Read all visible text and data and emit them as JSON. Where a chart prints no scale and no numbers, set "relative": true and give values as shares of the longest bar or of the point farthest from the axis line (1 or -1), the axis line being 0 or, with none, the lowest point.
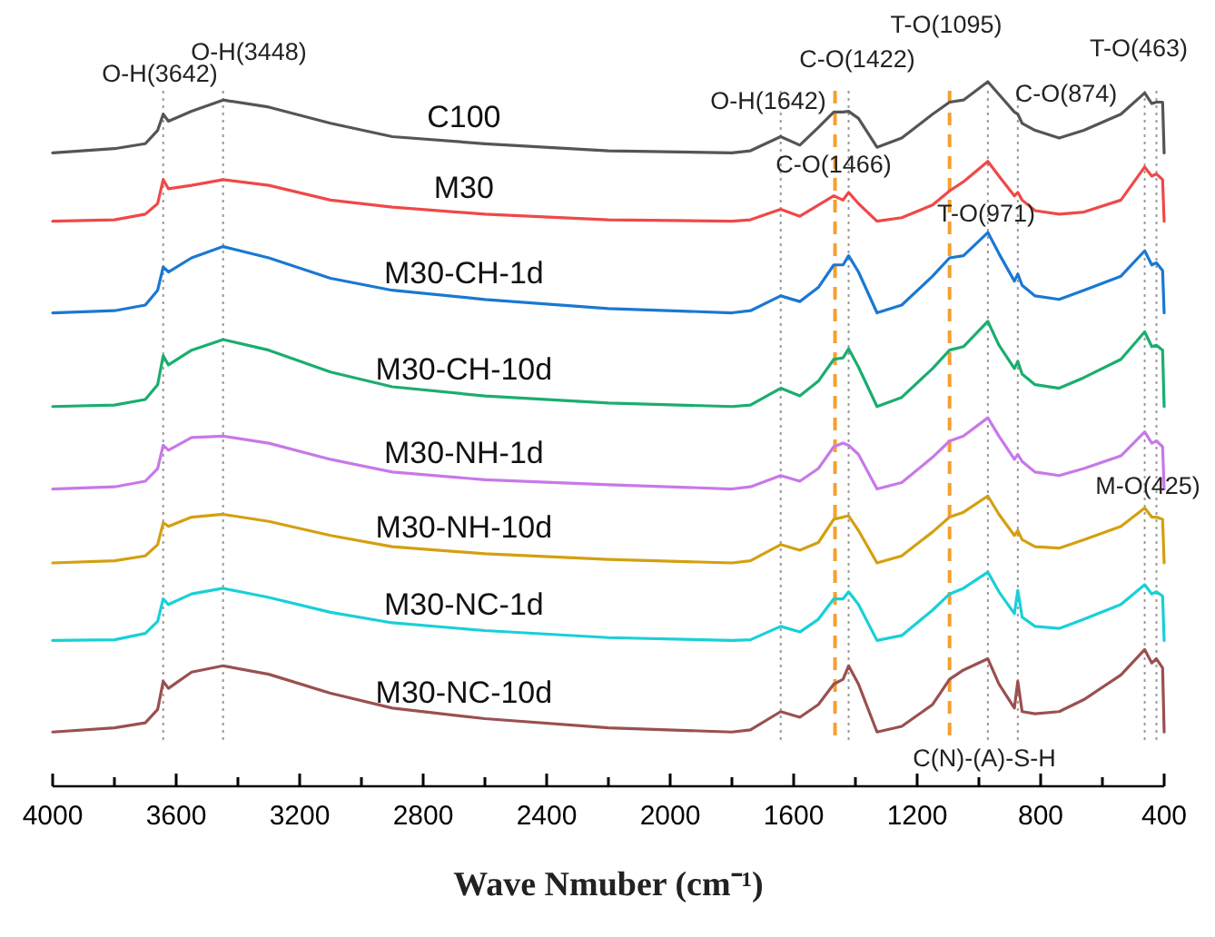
{
  "chart_data": {
    "type": "line",
    "relative": true,
    "xlabel": "Wave Nmuber (cm⁻¹)",
    "xlim": [
      4000,
      400
    ],
    "xticks": [
      4000,
      {
        "value": 3800,
        "label": null
      },
      3600,
      {
        "value": 3400,
        "label": null
      },
      3200,
      {
        "value": 3000,
        "label": null
      },
      2800,
      {
        "value": 2600,
        "label": null
      },
      2400,
      {
        "value": 2200,
        "label": null
      },
      2000,
      {
        "value": 1800,
        "label": null
      },
      1600,
      {
        "value": 1400,
        "label": null
      },
      1200,
      {
        "value": 1000,
        "label": null
      },
      800,
      {
        "value": 600,
        "label": null
      },
      400
    ],
    "tick_labels": "x",
    "grid": false,
    "legend": false,
    "marker": "none",
    "line_style": "solid",
    "x": [
      4000,
      3800,
      3700,
      3660,
      3642,
      3625,
      3550,
      3448,
      3300,
      3100,
      2900,
      2600,
      2200,
      1800,
      1740,
      1642,
      1580,
      1520,
      1470,
      1440,
      1422,
      1390,
      1330,
      1250,
      1150,
      1095,
      1050,
      971,
      935,
      885,
      874,
      860,
      818,
      740,
      660,
      540,
      463,
      440,
      425,
      405,
      400
    ],
    "series": [
      {
        "name": "C100",
        "color": "#555555",
        "values": [
          0.899,
          0.905,
          0.912,
          0.931,
          0.954,
          0.944,
          0.958,
          0.974,
          0.964,
          0.941,
          0.922,
          0.912,
          0.902,
          0.899,
          0.902,
          0.922,
          0.91,
          0.935,
          0.957,
          0.957,
          0.958,
          0.948,
          0.907,
          0.92,
          0.954,
          0.971,
          0.974,
          1,
          0.982,
          0.957,
          0.954,
          0.941,
          0.931,
          0.92,
          0.931,
          0.954,
          0.984,
          0.969,
          0.971,
          0.971,
          0.899
        ]
      },
      {
        "name": "M30",
        "color": "#f04848",
        "values": [
          0.802,
          0.804,
          0.812,
          0.827,
          0.861,
          0.848,
          0.853,
          0.861,
          0.853,
          0.832,
          0.822,
          0.812,
          0.804,
          0.802,
          0.804,
          0.819,
          0.809,
          0.825,
          0.838,
          0.832,
          0.843,
          0.827,
          0.802,
          0.807,
          0.825,
          0.845,
          0.858,
          0.887,
          0.866,
          0.838,
          0.843,
          0.832,
          0.817,
          0.812,
          0.815,
          0.832,
          0.879,
          0.866,
          0.869,
          0.861,
          0.802
        ]
      },
      {
        "name": "M30-CH-1d",
        "color": "#1a78d2",
        "values": [
          0.672,
          0.675,
          0.683,
          0.704,
          0.737,
          0.73,
          0.75,
          0.766,
          0.75,
          0.721,
          0.704,
          0.691,
          0.678,
          0.672,
          0.675,
          0.696,
          0.688,
          0.708,
          0.74,
          0.74,
          0.753,
          0.73,
          0.672,
          0.683,
          0.724,
          0.75,
          0.753,
          0.786,
          0.756,
          0.717,
          0.727,
          0.711,
          0.696,
          0.691,
          0.704,
          0.724,
          0.76,
          0.74,
          0.743,
          0.732,
          0.672
        ]
      },
      {
        "name": "M30-CH-10d",
        "color": "#1aae6e",
        "values": [
          0.539,
          0.541,
          0.549,
          0.57,
          0.611,
          0.598,
          0.619,
          0.634,
          0.619,
          0.588,
          0.567,
          0.554,
          0.544,
          0.539,
          0.541,
          0.565,
          0.554,
          0.575,
          0.606,
          0.608,
          0.621,
          0.595,
          0.539,
          0.552,
          0.593,
          0.619,
          0.624,
          0.66,
          0.626,
          0.593,
          0.603,
          0.585,
          0.57,
          0.565,
          0.58,
          0.606,
          0.645,
          0.624,
          0.626,
          0.619,
          0.539
        ]
      },
      {
        "name": "M30-NH-1d",
        "color": "#c878e8",
        "values": [
          0.422,
          0.425,
          0.433,
          0.451,
          0.484,
          0.477,
          0.495,
          0.497,
          0.487,
          0.464,
          0.446,
          0.435,
          0.428,
          0.422,
          0.425,
          0.441,
          0.433,
          0.451,
          0.482,
          0.487,
          0.484,
          0.471,
          0.422,
          0.431,
          0.467,
          0.49,
          0.497,
          0.523,
          0.497,
          0.464,
          0.471,
          0.461,
          0.446,
          0.441,
          0.451,
          0.469,
          0.503,
          0.487,
          0.49,
          0.482,
          0.422
        ]
      },
      {
        "name": "M30-NH-10d",
        "color": "#d4a010",
        "values": [
          0.317,
          0.32,
          0.327,
          0.343,
          0.374,
          0.369,
          0.382,
          0.386,
          0.376,
          0.356,
          0.34,
          0.33,
          0.322,
          0.317,
          0.32,
          0.343,
          0.335,
          0.346,
          0.379,
          0.382,
          0.384,
          0.363,
          0.317,
          0.327,
          0.361,
          0.382,
          0.389,
          0.412,
          0.386,
          0.356,
          0.363,
          0.35,
          0.34,
          0.338,
          0.35,
          0.369,
          0.395,
          0.382,
          0.382,
          0.379,
          0.317
        ]
      },
      {
        "name": "M30-NC-1d",
        "color": "#18d0d8",
        "values": [
          0.207,
          0.208,
          0.217,
          0.234,
          0.266,
          0.258,
          0.273,
          0.281,
          0.268,
          0.247,
          0.232,
          0.221,
          0.211,
          0.207,
          0.208,
          0.227,
          0.219,
          0.237,
          0.266,
          0.266,
          0.276,
          0.258,
          0.207,
          0.214,
          0.25,
          0.273,
          0.281,
          0.304,
          0.276,
          0.245,
          0.278,
          0.24,
          0.227,
          0.224,
          0.237,
          0.258,
          0.286,
          0.273,
          0.276,
          0.27,
          0.207
        ]
      },
      {
        "name": "M30-NC-10d",
        "color": "#9a5050",
        "values": [
          0.077,
          0.083,
          0.09,
          0.109,
          0.149,
          0.139,
          0.162,
          0.171,
          0.159,
          0.132,
          0.111,
          0.096,
          0.083,
          0.077,
          0.08,
          0.106,
          0.098,
          0.116,
          0.145,
          0.152,
          0.171,
          0.145,
          0.077,
          0.085,
          0.116,
          0.152,
          0.165,
          0.181,
          0.145,
          0.111,
          0.149,
          0.106,
          0.103,
          0.106,
          0.123,
          0.158,
          0.194,
          0.175,
          0.181,
          0.168,
          0.077
        ]
      }
    ],
    "ref_lines": [
      {
        "axis": "x",
        "value": 3642,
        "color": "#999999",
        "line_style": "dotted"
      },
      {
        "axis": "x",
        "value": 3448,
        "color": "#999999",
        "line_style": "dotted"
      },
      {
        "axis": "x",
        "value": 1642,
        "color": "#999999",
        "line_style": "dotted"
      },
      {
        "axis": "x",
        "value": 1422,
        "color": "#999999",
        "line_style": "dotted"
      },
      {
        "axis": "x",
        "value": 971,
        "color": "#999999",
        "line_style": "dotted"
      },
      {
        "axis": "x",
        "value": 874,
        "color": "#999999",
        "line_style": "dotted"
      },
      {
        "axis": "x",
        "value": 463,
        "color": "#999999",
        "line_style": "dotted"
      },
      {
        "axis": "x",
        "value": 425,
        "color": "#999999",
        "line_style": "dotted"
      },
      {
        "axis": "x",
        "value": 1466,
        "color": "#f5a030",
        "line_style": "dashed"
      },
      {
        "axis": "x",
        "value": 1095,
        "color": "#f5a030",
        "line_style": "dashed"
      }
    ],
    "annotations": [
      "O-H(3642)",
      "O-H(3448)",
      "O-H(1642)",
      "C-O(1422)",
      "T-O(1095)",
      "C-O(874)",
      "T-O(463)",
      "C-O(1466)",
      "T-O(971)",
      "M-O(425)",
      "C(N)-(A)-S-H"
    ]
  }
}
